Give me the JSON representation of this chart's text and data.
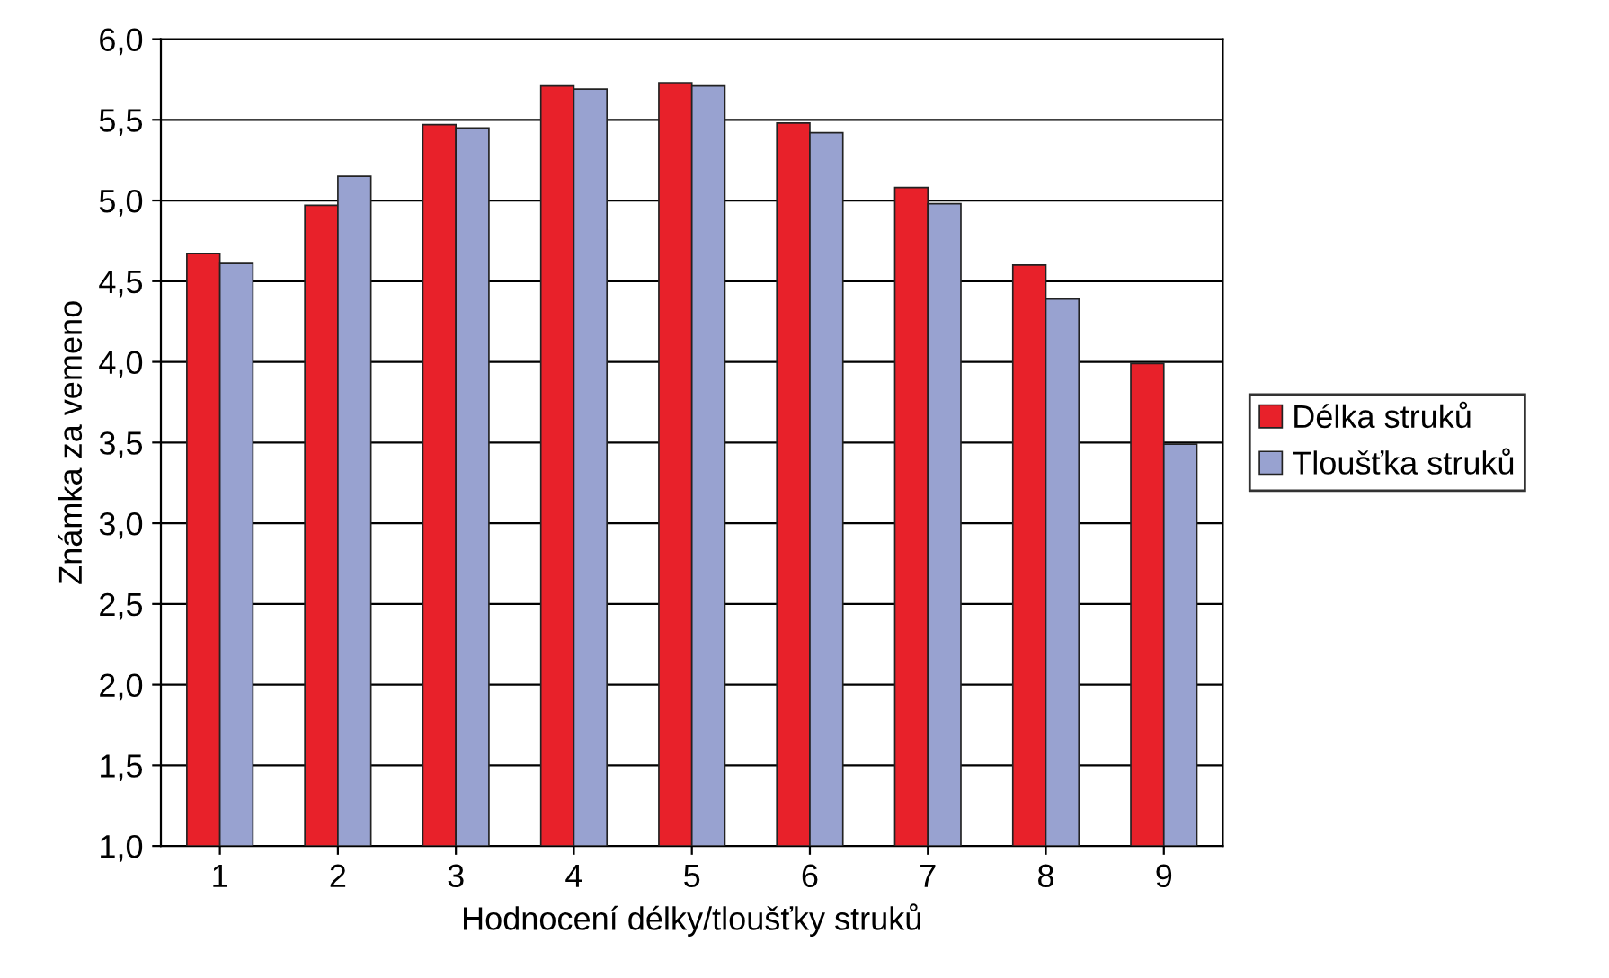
{
  "chart_data": {
    "type": "bar",
    "xlabel": "Hodnocení délky/tloušťky struků",
    "ylabel": "Známka za vemeno",
    "categories": [
      "1",
      "2",
      "3",
      "4",
      "5",
      "6",
      "7",
      "8",
      "9"
    ],
    "series": [
      {
        "name": "Délka struků",
        "color": "#e8212a",
        "values": [
          4.67,
          4.97,
          5.47,
          5.71,
          5.73,
          5.48,
          5.08,
          4.6,
          3.99
        ]
      },
      {
        "name": "Tloušťka struků",
        "color": "#98a2d0",
        "values": [
          4.61,
          5.15,
          5.45,
          5.69,
          5.71,
          5.42,
          4.98,
          4.39,
          3.49
        ]
      }
    ],
    "ylim": [
      1,
      6
    ],
    "yticks": [
      {
        "value": 1,
        "label": "1,0"
      },
      {
        "value": 1.5,
        "label": "1,5"
      },
      {
        "value": 2,
        "label": "2,0"
      },
      {
        "value": 2.5,
        "label": "2,5"
      },
      {
        "value": 3,
        "label": "3,0"
      },
      {
        "value": 3.5,
        "label": "3,5"
      },
      {
        "value": 4,
        "label": "4,0"
      },
      {
        "value": 4.5,
        "label": "4,5"
      },
      {
        "value": 5,
        "label": "5,0"
      },
      {
        "value": 5.5,
        "label": "5,5"
      },
      {
        "value": 6,
        "label": "6,0"
      }
    ],
    "grid": "y",
    "legend": "right"
  }
}
